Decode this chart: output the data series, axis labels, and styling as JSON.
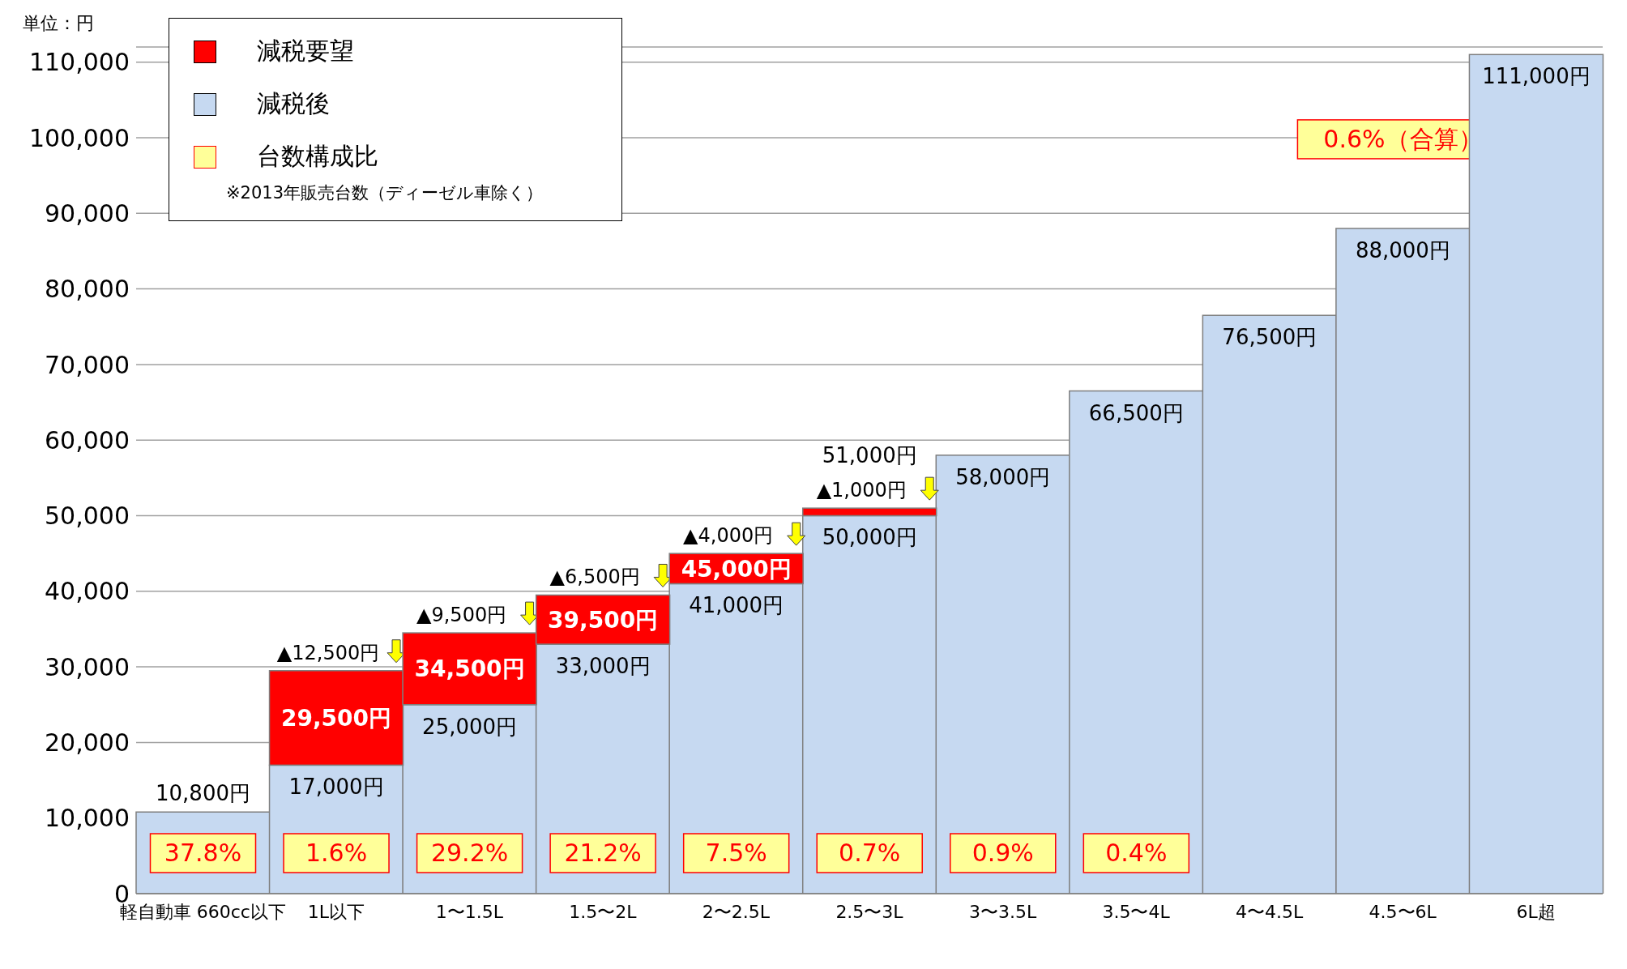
{
  "chart_data": {
    "type": "bar",
    "stacked": true,
    "ylabel": "単位：円",
    "categories": [
      "軽自動車 660cc以下",
      "1L以下",
      "1〜1.5L",
      "1.5〜2L",
      "2〜2.5L",
      "2.5〜3L",
      "3〜3.5L",
      "3.5〜4L",
      "4〜4.5L",
      "4.5〜6L",
      "6L超"
    ],
    "series": [
      {
        "name": "減税後",
        "color": "#c6d9f1",
        "values": [
          10800,
          17000,
          25000,
          33000,
          41000,
          50000,
          58000,
          66500,
          76500,
          88000,
          111000
        ],
        "value_labels": [
          "10,800円",
          "17,000円",
          "25,000円",
          "33,000円",
          "41,000円",
          "50,000円",
          "58,000円",
          "66,500円",
          "76,500円",
          "88,000円",
          "111,000円"
        ]
      },
      {
        "name": "減税要望",
        "color": "#ff0000",
        "values": [
          null,
          12500,
          9500,
          6500,
          4000,
          1000,
          null,
          null,
          null,
          null,
          null
        ]
      }
    ],
    "ylim": [
      0,
      112000
    ],
    "yticks": [
      0,
      {
        "value": 10000,
        "label": "10,000"
      },
      {
        "value": 20000,
        "label": "20,000"
      },
      {
        "value": 30000,
        "label": "30,000"
      },
      {
        "value": 40000,
        "label": "40,000"
      },
      {
        "value": 50000,
        "label": "50,000"
      },
      {
        "value": 60000,
        "label": "60,000"
      },
      {
        "value": 70000,
        "label": "70,000"
      },
      {
        "value": 80000,
        "label": "80,000"
      },
      {
        "value": 90000,
        "label": "90,000"
      },
      {
        "value": 100000,
        "label": "100,000"
      },
      {
        "value": 110000,
        "label": "110,000"
      }
    ],
    "grid": "y",
    "legend": "top left",
    "annotations": [
      "台数構成比",
      "※2013年販売台数（ディーゼル車除く）",
      "37.8%",
      "1.6%",
      "29.2%",
      "21.2%",
      "7.5%",
      "0.7%",
      "0.9%",
      "0.4%",
      "0.6%（合算）",
      {
        "text": "29,500円",
        "x": "1L以下",
        "y": 29500
      },
      {
        "text": "34,500円",
        "x": "1〜1.5L",
        "y": 34500
      },
      {
        "text": "39,500円",
        "x": "1.5〜2L",
        "y": 39500
      },
      {
        "text": "45,000円",
        "x": "2〜2.5L",
        "y": 45000
      },
      {
        "text": "51,000円",
        "x": "2.5〜3L",
        "y": 51000
      },
      {
        "text": "▲12,500円",
        "x": "1L以下",
        "y": 29500
      },
      {
        "text": "▲9,500円",
        "x": "1〜1.5L",
        "y": 34500
      },
      {
        "text": "▲6,500円",
        "x": "1.5〜2L",
        "y": 39500
      },
      {
        "text": "▲4,000円",
        "x": "2〜2.5L",
        "y": 45000
      },
      {
        "text": "▲1,000円",
        "x": "2.5〜3L",
        "y": 51000
      }
    ]
  }
}
